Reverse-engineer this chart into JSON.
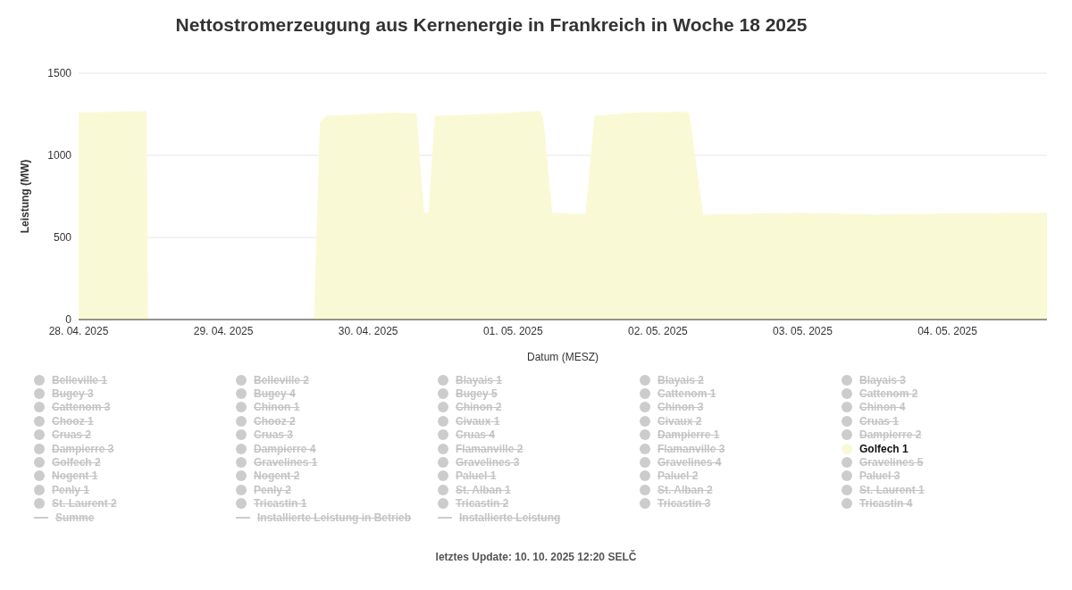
{
  "chart_data": {
    "type": "area",
    "title": "Nettostromerzeugung aus Kernenergie in Frankreich in Woche 18 2025",
    "xlabel": "Datum (MESZ)",
    "ylabel": "Leistung (MW)",
    "annotations": [
      "letztes Update: 10. 10. 2025 12:20 SELČ"
    ],
    "x": [
      "2025-04-28T00:00",
      "2025-04-28T06:00",
      "2025-04-28T11:15",
      "2025-04-28T11:30",
      "2025-04-29T15:00",
      "2025-04-29T16:00",
      "2025-04-29T17:00",
      "2025-04-29T22:00",
      "2025-04-30T04:00",
      "2025-04-30T08:00",
      "2025-04-30T09:15",
      "2025-04-30T10:00",
      "2025-04-30T11:00",
      "2025-04-30T18:00",
      "2025-05-01T00:00",
      "2025-05-01T04:30",
      "2025-05-01T05:00",
      "2025-05-01T06:30",
      "2025-05-01T12:00",
      "2025-05-01T13:30",
      "2025-05-01T20:00",
      "2025-05-02T04:30",
      "2025-05-02T05:15",
      "2025-05-02T07:30",
      "2025-05-02T18:00",
      "2025-05-03T00:00",
      "2025-05-03T12:00",
      "2025-05-04T00:00",
      "2025-05-04T12:00",
      "2025-05-04T16:30"
    ],
    "xlim": [
      "2025-04-28T00:00",
      "2025-05-04T16:30"
    ],
    "xticks": [
      {
        "value": "2025-04-28",
        "label": "28. 04. 2025"
      },
      {
        "value": "2025-04-29",
        "label": "29. 04. 2025"
      },
      {
        "value": "2025-04-30",
        "label": "30. 04. 2025"
      },
      {
        "value": "2025-05-01",
        "label": "01. 05. 2025"
      },
      {
        "value": "2025-05-02",
        "label": "02. 05. 2025"
      },
      {
        "value": "2025-05-03",
        "label": "03. 05. 2025"
      },
      {
        "value": "2025-05-04",
        "label": "04. 05. 2025"
      }
    ],
    "ylim": [
      0,
      1500
    ],
    "yticks": [
      0,
      500,
      1000,
      1500
    ],
    "grid": "y",
    "legend": "bottom",
    "series": [
      {
        "name": "Belleville 1",
        "color": "#cccccc",
        "values": [
          null,
          null,
          null,
          null,
          null,
          null,
          null,
          null,
          null,
          null,
          null,
          null,
          null,
          null,
          null,
          null,
          null,
          null,
          null,
          null,
          null,
          null,
          null,
          null,
          null,
          null,
          null,
          null,
          null,
          null
        ]
      },
      {
        "name": "Belleville 2",
        "color": "#cccccc",
        "values": [
          null,
          null,
          null,
          null,
          null,
          null,
          null,
          null,
          null,
          null,
          null,
          null,
          null,
          null,
          null,
          null,
          null,
          null,
          null,
          null,
          null,
          null,
          null,
          null,
          null,
          null,
          null,
          null,
          null,
          null
        ]
      },
      {
        "name": "Blayais 1",
        "color": "#cccccc",
        "values": [
          null,
          null,
          null,
          null,
          null,
          null,
          null,
          null,
          null,
          null,
          null,
          null,
          null,
          null,
          null,
          null,
          null,
          null,
          null,
          null,
          null,
          null,
          null,
          null,
          null,
          null,
          null,
          null,
          null,
          null
        ]
      },
      {
        "name": "Blayais 2",
        "color": "#cccccc",
        "values": [
          null,
          null,
          null,
          null,
          null,
          null,
          null,
          null,
          null,
          null,
          null,
          null,
          null,
          null,
          null,
          null,
          null,
          null,
          null,
          null,
          null,
          null,
          null,
          null,
          null,
          null,
          null,
          null,
          null,
          null
        ]
      },
      {
        "name": "Blayais 3",
        "color": "#cccccc",
        "values": [
          null,
          null,
          null,
          null,
          null,
          null,
          null,
          null,
          null,
          null,
          null,
          null,
          null,
          null,
          null,
          null,
          null,
          null,
          null,
          null,
          null,
          null,
          null,
          null,
          null,
          null,
          null,
          null,
          null,
          null
        ]
      },
      {
        "name": "Bugey 3",
        "color": "#cccccc",
        "values": [
          null,
          null,
          null,
          null,
          null,
          null,
          null,
          null,
          null,
          null,
          null,
          null,
          null,
          null,
          null,
          null,
          null,
          null,
          null,
          null,
          null,
          null,
          null,
          null,
          null,
          null,
          null,
          null,
          null,
          null
        ]
      },
      {
        "name": "Bugey 4",
        "color": "#cccccc",
        "values": [
          null,
          null,
          null,
          null,
          null,
          null,
          null,
          null,
          null,
          null,
          null,
          null,
          null,
          null,
          null,
          null,
          null,
          null,
          null,
          null,
          null,
          null,
          null,
          null,
          null,
          null,
          null,
          null,
          null,
          null
        ]
      },
      {
        "name": "Bugey 5",
        "color": "#cccccc",
        "values": [
          null,
          null,
          null,
          null,
          null,
          null,
          null,
          null,
          null,
          null,
          null,
          null,
          null,
          null,
          null,
          null,
          null,
          null,
          null,
          null,
          null,
          null,
          null,
          null,
          null,
          null,
          null,
          null,
          null,
          null
        ]
      },
      {
        "name": "Cattenom 1",
        "color": "#cccccc",
        "values": [
          null,
          null,
          null,
          null,
          null,
          null,
          null,
          null,
          null,
          null,
          null,
          null,
          null,
          null,
          null,
          null,
          null,
          null,
          null,
          null,
          null,
          null,
          null,
          null,
          null,
          null,
          null,
          null,
          null,
          null
        ]
      },
      {
        "name": "Cattenom 2",
        "color": "#cccccc",
        "values": [
          null,
          null,
          null,
          null,
          null,
          null,
          null,
          null,
          null,
          null,
          null,
          null,
          null,
          null,
          null,
          null,
          null,
          null,
          null,
          null,
          null,
          null,
          null,
          null,
          null,
          null,
          null,
          null,
          null,
          null
        ]
      },
      {
        "name": "Cattenom 3",
        "color": "#cccccc",
        "values": [
          null,
          null,
          null,
          null,
          null,
          null,
          null,
          null,
          null,
          null,
          null,
          null,
          null,
          null,
          null,
          null,
          null,
          null,
          null,
          null,
          null,
          null,
          null,
          null,
          null,
          null,
          null,
          null,
          null,
          null
        ]
      },
      {
        "name": "Chinon 1",
        "color": "#cccccc",
        "values": [
          null,
          null,
          null,
          null,
          null,
          null,
          null,
          null,
          null,
          null,
          null,
          null,
          null,
          null,
          null,
          null,
          null,
          null,
          null,
          null,
          null,
          null,
          null,
          null,
          null,
          null,
          null,
          null,
          null,
          null
        ]
      },
      {
        "name": "Chinon 2",
        "color": "#cccccc",
        "values": [
          null,
          null,
          null,
          null,
          null,
          null,
          null,
          null,
          null,
          null,
          null,
          null,
          null,
          null,
          null,
          null,
          null,
          null,
          null,
          null,
          null,
          null,
          null,
          null,
          null,
          null,
          null,
          null,
          null,
          null
        ]
      },
      {
        "name": "Chinon 3",
        "color": "#cccccc",
        "values": [
          null,
          null,
          null,
          null,
          null,
          null,
          null,
          null,
          null,
          null,
          null,
          null,
          null,
          null,
          null,
          null,
          null,
          null,
          null,
          null,
          null,
          null,
          null,
          null,
          null,
          null,
          null,
          null,
          null,
          null
        ]
      },
      {
        "name": "Chinon 4",
        "color": "#cccccc",
        "values": [
          null,
          null,
          null,
          null,
          null,
          null,
          null,
          null,
          null,
          null,
          null,
          null,
          null,
          null,
          null,
          null,
          null,
          null,
          null,
          null,
          null,
          null,
          null,
          null,
          null,
          null,
          null,
          null,
          null,
          null
        ]
      },
      {
        "name": "Chooz 1",
        "color": "#cccccc",
        "values": [
          null,
          null,
          null,
          null,
          null,
          null,
          null,
          null,
          null,
          null,
          null,
          null,
          null,
          null,
          null,
          null,
          null,
          null,
          null,
          null,
          null,
          null,
          null,
          null,
          null,
          null,
          null,
          null,
          null,
          null
        ]
      },
      {
        "name": "Chooz 2",
        "color": "#cccccc",
        "values": [
          null,
          null,
          null,
          null,
          null,
          null,
          null,
          null,
          null,
          null,
          null,
          null,
          null,
          null,
          null,
          null,
          null,
          null,
          null,
          null,
          null,
          null,
          null,
          null,
          null,
          null,
          null,
          null,
          null,
          null
        ]
      },
      {
        "name": "Civaux 1",
        "color": "#cccccc",
        "values": [
          null,
          null,
          null,
          null,
          null,
          null,
          null,
          null,
          null,
          null,
          null,
          null,
          null,
          null,
          null,
          null,
          null,
          null,
          null,
          null,
          null,
          null,
          null,
          null,
          null,
          null,
          null,
          null,
          null,
          null
        ]
      },
      {
        "name": "Civaux 2",
        "color": "#cccccc",
        "values": [
          null,
          null,
          null,
          null,
          null,
          null,
          null,
          null,
          null,
          null,
          null,
          null,
          null,
          null,
          null,
          null,
          null,
          null,
          null,
          null,
          null,
          null,
          null,
          null,
          null,
          null,
          null,
          null,
          null,
          null
        ]
      },
      {
        "name": "Cruas 1",
        "color": "#cccccc",
        "values": [
          null,
          null,
          null,
          null,
          null,
          null,
          null,
          null,
          null,
          null,
          null,
          null,
          null,
          null,
          null,
          null,
          null,
          null,
          null,
          null,
          null,
          null,
          null,
          null,
          null,
          null,
          null,
          null,
          null,
          null
        ]
      },
      {
        "name": "Cruas 2",
        "color": "#cccccc",
        "values": [
          null,
          null,
          null,
          null,
          null,
          null,
          null,
          null,
          null,
          null,
          null,
          null,
          null,
          null,
          null,
          null,
          null,
          null,
          null,
          null,
          null,
          null,
          null,
          null,
          null,
          null,
          null,
          null,
          null,
          null
        ]
      },
      {
        "name": "Cruas 3",
        "color": "#cccccc",
        "values": [
          null,
          null,
          null,
          null,
          null,
          null,
          null,
          null,
          null,
          null,
          null,
          null,
          null,
          null,
          null,
          null,
          null,
          null,
          null,
          null,
          null,
          null,
          null,
          null,
          null,
          null,
          null,
          null,
          null,
          null
        ]
      },
      {
        "name": "Cruas 4",
        "color": "#cccccc",
        "values": [
          null,
          null,
          null,
          null,
          null,
          null,
          null,
          null,
          null,
          null,
          null,
          null,
          null,
          null,
          null,
          null,
          null,
          null,
          null,
          null,
          null,
          null,
          null,
          null,
          null,
          null,
          null,
          null,
          null,
          null
        ]
      },
      {
        "name": "Dampierre 1",
        "color": "#cccccc",
        "values": [
          null,
          null,
          null,
          null,
          null,
          null,
          null,
          null,
          null,
          null,
          null,
          null,
          null,
          null,
          null,
          null,
          null,
          null,
          null,
          null,
          null,
          null,
          null,
          null,
          null,
          null,
          null,
          null,
          null,
          null
        ]
      },
      {
        "name": "Dampierre 2",
        "color": "#cccccc",
        "values": [
          null,
          null,
          null,
          null,
          null,
          null,
          null,
          null,
          null,
          null,
          null,
          null,
          null,
          null,
          null,
          null,
          null,
          null,
          null,
          null,
          null,
          null,
          null,
          null,
          null,
          null,
          null,
          null,
          null,
          null
        ]
      },
      {
        "name": "Dampierre 3",
        "color": "#cccccc",
        "values": [
          null,
          null,
          null,
          null,
          null,
          null,
          null,
          null,
          null,
          null,
          null,
          null,
          null,
          null,
          null,
          null,
          null,
          null,
          null,
          null,
          null,
          null,
          null,
          null,
          null,
          null,
          null,
          null,
          null,
          null
        ]
      },
      {
        "name": "Dampierre 4",
        "color": "#cccccc",
        "values": [
          null,
          null,
          null,
          null,
          null,
          null,
          null,
          null,
          null,
          null,
          null,
          null,
          null,
          null,
          null,
          null,
          null,
          null,
          null,
          null,
          null,
          null,
          null,
          null,
          null,
          null,
          null,
          null,
          null,
          null
        ]
      },
      {
        "name": "Flamanville 2",
        "color": "#cccccc",
        "values": [
          null,
          null,
          null,
          null,
          null,
          null,
          null,
          null,
          null,
          null,
          null,
          null,
          null,
          null,
          null,
          null,
          null,
          null,
          null,
          null,
          null,
          null,
          null,
          null,
          null,
          null,
          null,
          null,
          null,
          null
        ]
      },
      {
        "name": "Flamanville 3",
        "color": "#cccccc",
        "values": [
          null,
          null,
          null,
          null,
          null,
          null,
          null,
          null,
          null,
          null,
          null,
          null,
          null,
          null,
          null,
          null,
          null,
          null,
          null,
          null,
          null,
          null,
          null,
          null,
          null,
          null,
          null,
          null,
          null,
          null
        ]
      },
      {
        "name": "Golfech 1",
        "color": "#faf9d5",
        "values": [
          1260,
          1265,
          1270,
          0,
          0,
          1200,
          1240,
          1250,
          1260,
          1255,
          650,
          650,
          1240,
          1250,
          1260,
          1270,
          1230,
          650,
          640,
          1240,
          1260,
          1265,
          1255,
          640,
          645,
          650,
          640,
          645,
          650,
          650
        ]
      },
      {
        "name": "Golfech 2",
        "color": "#cccccc",
        "values": [
          null,
          null,
          null,
          null,
          null,
          null,
          null,
          null,
          null,
          null,
          null,
          null,
          null,
          null,
          null,
          null,
          null,
          null,
          null,
          null,
          null,
          null,
          null,
          null,
          null,
          null,
          null,
          null,
          null,
          null
        ]
      },
      {
        "name": "Gravelines 1",
        "color": "#cccccc",
        "values": [
          null,
          null,
          null,
          null,
          null,
          null,
          null,
          null,
          null,
          null,
          null,
          null,
          null,
          null,
          null,
          null,
          null,
          null,
          null,
          null,
          null,
          null,
          null,
          null,
          null,
          null,
          null,
          null,
          null,
          null
        ]
      },
      {
        "name": "Gravelines 3",
        "color": "#cccccc",
        "values": [
          null,
          null,
          null,
          null,
          null,
          null,
          null,
          null,
          null,
          null,
          null,
          null,
          null,
          null,
          null,
          null,
          null,
          null,
          null,
          null,
          null,
          null,
          null,
          null,
          null,
          null,
          null,
          null,
          null,
          null
        ]
      },
      {
        "name": "Gravelines 4",
        "color": "#cccccc",
        "values": [
          null,
          null,
          null,
          null,
          null,
          null,
          null,
          null,
          null,
          null,
          null,
          null,
          null,
          null,
          null,
          null,
          null,
          null,
          null,
          null,
          null,
          null,
          null,
          null,
          null,
          null,
          null,
          null,
          null,
          null
        ]
      },
      {
        "name": "Gravelines 5",
        "color": "#cccccc",
        "values": [
          null,
          null,
          null,
          null,
          null,
          null,
          null,
          null,
          null,
          null,
          null,
          null,
          null,
          null,
          null,
          null,
          null,
          null,
          null,
          null,
          null,
          null,
          null,
          null,
          null,
          null,
          null,
          null,
          null,
          null
        ]
      },
      {
        "name": "Nogent 1",
        "color": "#cccccc",
        "values": [
          null,
          null,
          null,
          null,
          null,
          null,
          null,
          null,
          null,
          null,
          null,
          null,
          null,
          null,
          null,
          null,
          null,
          null,
          null,
          null,
          null,
          null,
          null,
          null,
          null,
          null,
          null,
          null,
          null,
          null
        ]
      },
      {
        "name": "Nogent 2",
        "color": "#cccccc",
        "values": [
          null,
          null,
          null,
          null,
          null,
          null,
          null,
          null,
          null,
          null,
          null,
          null,
          null,
          null,
          null,
          null,
          null,
          null,
          null,
          null,
          null,
          null,
          null,
          null,
          null,
          null,
          null,
          null,
          null,
          null
        ]
      },
      {
        "name": "Paluel 1",
        "color": "#cccccc",
        "values": [
          null,
          null,
          null,
          null,
          null,
          null,
          null,
          null,
          null,
          null,
          null,
          null,
          null,
          null,
          null,
          null,
          null,
          null,
          null,
          null,
          null,
          null,
          null,
          null,
          null,
          null,
          null,
          null,
          null,
          null
        ]
      },
      {
        "name": "Paluel 2",
        "color": "#cccccc",
        "values": [
          null,
          null,
          null,
          null,
          null,
          null,
          null,
          null,
          null,
          null,
          null,
          null,
          null,
          null,
          null,
          null,
          null,
          null,
          null,
          null,
          null,
          null,
          null,
          null,
          null,
          null,
          null,
          null,
          null,
          null
        ]
      },
      {
        "name": "Paluel 3",
        "color": "#cccccc",
        "values": [
          null,
          null,
          null,
          null,
          null,
          null,
          null,
          null,
          null,
          null,
          null,
          null,
          null,
          null,
          null,
          null,
          null,
          null,
          null,
          null,
          null,
          null,
          null,
          null,
          null,
          null,
          null,
          null,
          null,
          null
        ]
      },
      {
        "name": "Penly 1",
        "color": "#cccccc",
        "values": [
          null,
          null,
          null,
          null,
          null,
          null,
          null,
          null,
          null,
          null,
          null,
          null,
          null,
          null,
          null,
          null,
          null,
          null,
          null,
          null,
          null,
          null,
          null,
          null,
          null,
          null,
          null,
          null,
          null,
          null
        ]
      },
      {
        "name": "Penly 2",
        "color": "#cccccc",
        "values": [
          null,
          null,
          null,
          null,
          null,
          null,
          null,
          null,
          null,
          null,
          null,
          null,
          null,
          null,
          null,
          null,
          null,
          null,
          null,
          null,
          null,
          null,
          null,
          null,
          null,
          null,
          null,
          null,
          null,
          null
        ]
      },
      {
        "name": "St. Alban 1",
        "color": "#cccccc",
        "values": [
          null,
          null,
          null,
          null,
          null,
          null,
          null,
          null,
          null,
          null,
          null,
          null,
          null,
          null,
          null,
          null,
          null,
          null,
          null,
          null,
          null,
          null,
          null,
          null,
          null,
          null,
          null,
          null,
          null,
          null
        ]
      },
      {
        "name": "St. Alban 2",
        "color": "#cccccc",
        "values": [
          null,
          null,
          null,
          null,
          null,
          null,
          null,
          null,
          null,
          null,
          null,
          null,
          null,
          null,
          null,
          null,
          null,
          null,
          null,
          null,
          null,
          null,
          null,
          null,
          null,
          null,
          null,
          null,
          null,
          null
        ]
      },
      {
        "name": "St. Laurent 1",
        "color": "#cccccc",
        "values": [
          null,
          null,
          null,
          null,
          null,
          null,
          null,
          null,
          null,
          null,
          null,
          null,
          null,
          null,
          null,
          null,
          null,
          null,
          null,
          null,
          null,
          null,
          null,
          null,
          null,
          null,
          null,
          null,
          null,
          null
        ]
      },
      {
        "name": "St. Laurent 2",
        "color": "#cccccc",
        "values": [
          null,
          null,
          null,
          null,
          null,
          null,
          null,
          null,
          null,
          null,
          null,
          null,
          null,
          null,
          null,
          null,
          null,
          null,
          null,
          null,
          null,
          null,
          null,
          null,
          null,
          null,
          null,
          null,
          null,
          null
        ]
      },
      {
        "name": "Tricastin 1",
        "color": "#cccccc",
        "values": [
          null,
          null,
          null,
          null,
          null,
          null,
          null,
          null,
          null,
          null,
          null,
          null,
          null,
          null,
          null,
          null,
          null,
          null,
          null,
          null,
          null,
          null,
          null,
          null,
          null,
          null,
          null,
          null,
          null,
          null
        ]
      },
      {
        "name": "Tricastin 2",
        "color": "#cccccc",
        "values": [
          null,
          null,
          null,
          null,
          null,
          null,
          null,
          null,
          null,
          null,
          null,
          null,
          null,
          null,
          null,
          null,
          null,
          null,
          null,
          null,
          null,
          null,
          null,
          null,
          null,
          null,
          null,
          null,
          null,
          null
        ]
      },
      {
        "name": "Tricastin 3",
        "color": "#cccccc",
        "values": [
          null,
          null,
          null,
          null,
          null,
          null,
          null,
          null,
          null,
          null,
          null,
          null,
          null,
          null,
          null,
          null,
          null,
          null,
          null,
          null,
          null,
          null,
          null,
          null,
          null,
          null,
          null,
          null,
          null,
          null
        ]
      },
      {
        "name": "Tricastin 4",
        "color": "#cccccc",
        "values": [
          null,
          null,
          null,
          null,
          null,
          null,
          null,
          null,
          null,
          null,
          null,
          null,
          null,
          null,
          null,
          null,
          null,
          null,
          null,
          null,
          null,
          null,
          null,
          null,
          null,
          null,
          null,
          null,
          null,
          null
        ]
      },
      {
        "name": "Summe",
        "type": "line",
        "color": "#cccccc",
        "values": [
          null,
          null,
          null,
          null,
          null,
          null,
          null,
          null,
          null,
          null,
          null,
          null,
          null,
          null,
          null,
          null,
          null,
          null,
          null,
          null,
          null,
          null,
          null,
          null,
          null,
          null,
          null,
          null,
          null,
          null
        ]
      },
      {
        "name": "Installierte Leistung in Betrieb",
        "type": "line",
        "color": "#cccccc",
        "values": [
          null,
          null,
          null,
          null,
          null,
          null,
          null,
          null,
          null,
          null,
          null,
          null,
          null,
          null,
          null,
          null,
          null,
          null,
          null,
          null,
          null,
          null,
          null,
          null,
          null,
          null,
          null,
          null,
          null,
          null
        ]
      },
      {
        "name": "Installierte Leistung",
        "type": "line",
        "color": "#cccccc",
        "values": [
          null,
          null,
          null,
          null,
          null,
          null,
          null,
          null,
          null,
          null,
          null,
          null,
          null,
          null,
          null,
          null,
          null,
          null,
          null,
          null,
          null,
          null,
          null,
          null,
          null,
          null,
          null,
          null,
          null,
          null
        ]
      }
    ]
  }
}
